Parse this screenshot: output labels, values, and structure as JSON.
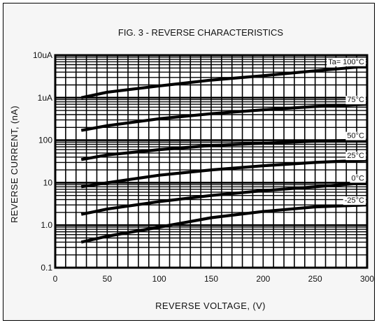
{
  "chart_data": {
    "type": "line",
    "title": "FIG. 3 - REVERSE CHARACTERISTICS",
    "xlabel": "REVERSE  VOLTAGE, (V)",
    "ylabel": "REVERSE  CURRENT, (nA)",
    "xlim": [
      0,
      300
    ],
    "ylim": [
      0.1,
      10000
    ],
    "yscale": "log",
    "grid": true,
    "xticks": [
      0,
      50,
      100,
      150,
      200,
      250,
      300
    ],
    "xtick_labels": [
      "0",
      "50",
      "100",
      "150",
      "200",
      "250",
      "300"
    ],
    "yticks": [
      0.1,
      1,
      10,
      100,
      1000,
      10000
    ],
    "ytick_labels": [
      "0.1",
      "1.0",
      "10",
      "100",
      "1uA",
      "10uA"
    ],
    "series": [
      {
        "name": "Ta= 100°C",
        "x": [
          25,
          50,
          100,
          150,
          200,
          250,
          300
        ],
        "values": [
          1000,
          1350,
          1900,
          2600,
          3300,
          4300,
          5500
        ]
      },
      {
        "name": "75°C",
        "x": [
          25,
          50,
          100,
          150,
          200,
          250,
          300
        ],
        "values": [
          170,
          220,
          320,
          420,
          520,
          620,
          700
        ]
      },
      {
        "name": "50°C",
        "x": [
          25,
          50,
          100,
          150,
          200,
          250,
          300
        ],
        "values": [
          35,
          45,
          60,
          75,
          85,
          95,
          100
        ]
      },
      {
        "name": "25°C",
        "x": [
          25,
          50,
          100,
          150,
          200,
          250,
          300
        ],
        "values": [
          8,
          10,
          15,
          20,
          25,
          30,
          34
        ]
      },
      {
        "name": "0°C",
        "x": [
          25,
          50,
          100,
          150,
          200,
          250,
          300
        ],
        "values": [
          1.8,
          2.4,
          3.6,
          5,
          6.5,
          8,
          10
        ]
      },
      {
        "name": "-25°C",
        "x": [
          25,
          50,
          100,
          150,
          200,
          250,
          300
        ],
        "values": [
          0.4,
          0.55,
          0.9,
          1.5,
          2.1,
          2.7,
          3
        ]
      }
    ]
  }
}
